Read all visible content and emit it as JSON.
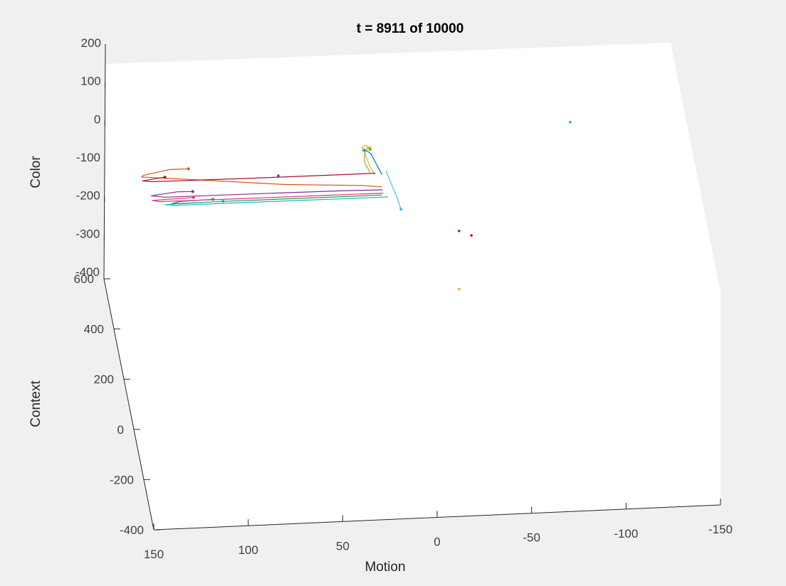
{
  "chart_data": {
    "type": "line",
    "title": "t = 8911 of 10000",
    "xlabel": "Motion",
    "ylabel": "Context",
    "zlabel": "Color",
    "xlim": [
      -150,
      150
    ],
    "ylim": [
      -400,
      600
    ],
    "zlim": [
      -400,
      200
    ],
    "xticks": [
      "150",
      "100",
      "50",
      "0",
      "-50",
      "-100",
      "-150"
    ],
    "yticks": [
      "600",
      "400",
      "200",
      "0",
      "-200",
      "-400"
    ],
    "zticks": [
      "200",
      "100",
      "0",
      "-100",
      "-200",
      "-300",
      "-400"
    ],
    "view": "3d",
    "grid": false,
    "series_colors": [
      "#0072bd",
      "#d95319",
      "#edb120",
      "#7e2f8e",
      "#77ac30",
      "#4dbeee",
      "#a2142f",
      "#1f9e4a",
      "#e6317a",
      "#16b8c2"
    ],
    "series": [
      {
        "x": [
          8,
          10,
          12,
          14,
          15
        ],
        "y": [
          420,
          455,
          490,
          510,
          520
        ],
        "z": [
          -40,
          -35,
          -30,
          -34,
          -40
        ]
      },
      {
        "x": [
          10,
          20,
          60,
          110,
          135,
          134,
          120,
          110
        ],
        "y": [
          350,
          360,
          380,
          420,
          430,
          432,
          440,
          438
        ],
        "z": [
          -25,
          -26,
          -28,
          -30,
          -25,
          -22,
          -15,
          -14
        ]
      },
      {
        "x": [
          12,
          14,
          15,
          16,
          14,
          12
        ],
        "y": [
          420,
          460,
          500,
          520,
          525,
          510
        ],
        "z": [
          -38,
          -36,
          -34,
          -32,
          -30,
          -28
        ]
      },
      {
        "x": [
          10,
          30,
          80,
          125,
          132,
          118,
          110
        ],
        "y": [
          330,
          335,
          340,
          345,
          350,
          355,
          352
        ],
        "z": [
          -20,
          -21,
          -22,
          -24,
          -22,
          -18,
          -17
        ]
      },
      {
        "x": [
          14,
          16,
          15,
          13,
          12
        ],
        "y": [
          430,
          470,
          505,
          520,
          510
        ],
        "z": [
          -40,
          -38,
          -36,
          -34,
          -32
        ]
      },
      {
        "x": [
          6,
          4,
          2,
          1
        ],
        "y": [
          420,
          380,
          340,
          305
        ],
        "z": [
          -30,
          -40,
          -50,
          -56
        ]
      },
      {
        "x": [
          12,
          30,
          80,
          130,
          135,
          123
        ],
        "y": [
          400,
          402,
          405,
          410,
          412,
          418
        ],
        "z": [
          -22,
          -23,
          -24,
          -25,
          -23,
          -20
        ]
      },
      {
        "x": [
          11,
          40,
          90,
          122,
          118,
          100
        ],
        "y": [
          310,
          312,
          315,
          318,
          322,
          324
        ],
        "z": [
          -20,
          -21,
          -22,
          -24,
          -22,
          -21
        ]
      },
      {
        "x": [
          10,
          40,
          85,
          128,
          132,
          110
        ],
        "y": [
          320,
          323,
          326,
          330,
          333,
          336
        ],
        "z": [
          -22,
          -23,
          -24,
          -25,
          -23,
          -22
        ]
      },
      {
        "x": [
          8,
          30,
          70,
          120,
          126,
          95
        ],
        "y": [
          300,
          302,
          305,
          308,
          311,
          313
        ],
        "z": [
          -19,
          -20,
          -21,
          -22,
          -21,
          -20
        ]
      }
    ],
    "stray_points": [
      {
        "x": 58,
        "y": 600,
        "z": -150
      },
      {
        "x": -27,
        "y": 200,
        "z": -50
      },
      {
        "x": -33,
        "y": 180,
        "z": -50
      },
      {
        "x": -95,
        "y": 550,
        "z": -10
      },
      {
        "x": -21,
        "y": -30,
        "z": -50
      }
    ]
  }
}
